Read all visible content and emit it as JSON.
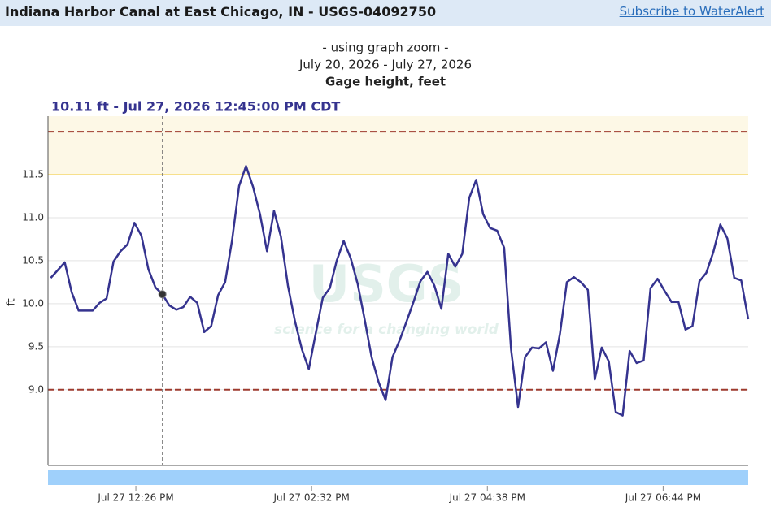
{
  "header": {
    "title": "Indiana Harbor Canal at East Chicago, IN - USGS-04092750",
    "link": "Subscribe to WaterAlert"
  },
  "chart_data": {
    "type": "line",
    "subtitle_lines": [
      "- using graph zoom -",
      "July 20, 2026 - July 27, 2026",
      "Gage height, feet"
    ],
    "ylabel": "ft",
    "watermark": [
      "USGS",
      "science for a changing world"
    ],
    "tooltip": {
      "label": "10.11 ft - Jul 27, 2026 12:45:00 PM CDT",
      "point": 16
    },
    "xlim": [
      "Jul 27 11:23 AM",
      "Jul 27 07:45 PM"
    ],
    "xticks": [
      "Jul 27 12:26 PM",
      "Jul 27 02:32 PM",
      "Jul 27 04:38 PM",
      "Jul 27 06:44 PM"
    ],
    "ylim": [
      8.12,
      12.18
    ],
    "yticks": [
      {
        "value": 9.0,
        "label": "9.0"
      },
      9.5,
      {
        "value": 10.0,
        "label": "10.0"
      },
      10.5,
      {
        "value": 11.0,
        "label": "11.0"
      },
      11.5
    ],
    "grid": true,
    "band": {
      "from": 11.5,
      "color": "#fdf8e6"
    },
    "reference_lines": [
      {
        "value": 12.0,
        "color": "#9e3a2e",
        "dashed": true
      },
      {
        "value": 11.5,
        "color": "#f7e08c",
        "dashed": false
      },
      {
        "value": 9.0,
        "color": "#9e3a2e",
        "dashed": true
      }
    ],
    "navigator_color": "#9fd0fb",
    "x": [
      "Jul 27 11:25 AM",
      "Jul 27 11:30 AM",
      "Jul 27 11:35 AM",
      "Jul 27 11:40 AM",
      "Jul 27 11:45 AM",
      "Jul 27 11:50 AM",
      "Jul 27 11:55 AM",
      "Jul 27 12:00 PM",
      "Jul 27 12:05 PM",
      "Jul 27 12:10 PM",
      "Jul 27 12:15 PM",
      "Jul 27 12:20 PM",
      "Jul 27 12:25 PM",
      "Jul 27 12:30 PM",
      "Jul 27 12:35 PM",
      "Jul 27 12:40 PM",
      "Jul 27 12:45 PM",
      "Jul 27 12:50 PM",
      "Jul 27 12:55 PM",
      "Jul 27 01:00 PM",
      "Jul 27 01:05 PM",
      "Jul 27 01:10 PM",
      "Jul 27 01:15 PM",
      "Jul 27 01:20 PM",
      "Jul 27 01:25 PM",
      "Jul 27 01:30 PM",
      "Jul 27 01:35 PM",
      "Jul 27 01:40 PM",
      "Jul 27 01:45 PM",
      "Jul 27 01:50 PM",
      "Jul 27 01:55 PM",
      "Jul 27 02:00 PM",
      "Jul 27 02:05 PM",
      "Jul 27 02:10 PM",
      "Jul 27 02:15 PM",
      "Jul 27 02:20 PM",
      "Jul 27 02:25 PM",
      "Jul 27 02:30 PM",
      "Jul 27 02:35 PM",
      "Jul 27 02:40 PM",
      "Jul 27 02:45 PM",
      "Jul 27 02:50 PM",
      "Jul 27 02:55 PM",
      "Jul 27 03:00 PM",
      "Jul 27 03:05 PM",
      "Jul 27 03:10 PM",
      "Jul 27 03:15 PM",
      "Jul 27 03:20 PM",
      "Jul 27 03:25 PM",
      "Jul 27 03:30 PM",
      "Jul 27 03:35 PM",
      "Jul 27 03:40 PM",
      "Jul 27 03:45 PM",
      "Jul 27 03:50 PM",
      "Jul 27 03:55 PM",
      "Jul 27 04:00 PM",
      "Jul 27 04:05 PM",
      "Jul 27 04:10 PM",
      "Jul 27 04:15 PM",
      "Jul 27 04:20 PM",
      "Jul 27 04:25 PM",
      "Jul 27 04:30 PM",
      "Jul 27 04:35 PM",
      "Jul 27 04:40 PM",
      "Jul 27 04:45 PM",
      "Jul 27 04:50 PM",
      "Jul 27 04:55 PM",
      "Jul 27 05:00 PM",
      "Jul 27 05:05 PM",
      "Jul 27 05:10 PM",
      "Jul 27 05:15 PM",
      "Jul 27 05:20 PM",
      "Jul 27 05:25 PM",
      "Jul 27 05:30 PM",
      "Jul 27 05:35 PM",
      "Jul 27 05:40 PM",
      "Jul 27 05:45 PM",
      "Jul 27 05:50 PM",
      "Jul 27 05:55 PM",
      "Jul 27 06:00 PM",
      "Jul 27 06:05 PM",
      "Jul 27 06:10 PM",
      "Jul 27 06:15 PM",
      "Jul 27 06:20 PM",
      "Jul 27 06:25 PM",
      "Jul 27 06:30 PM",
      "Jul 27 06:35 PM",
      "Jul 27 06:40 PM",
      "Jul 27 06:45 PM",
      "Jul 27 06:50 PM",
      "Jul 27 06:55 PM",
      "Jul 27 07:00 PM",
      "Jul 27 07:05 PM",
      "Jul 27 07:10 PM",
      "Jul 27 07:15 PM",
      "Jul 27 07:20 PM",
      "Jul 27 07:25 PM",
      "Jul 27 07:30 PM",
      "Jul 27 07:35 PM",
      "Jul 27 07:40 PM",
      "Jul 27 07:45 PM"
    ],
    "series": [
      {
        "name": "Gage height",
        "color": "#35338f",
        "values": [
          10.3,
          10.39,
          10.48,
          10.13,
          9.92,
          9.92,
          9.92,
          10.01,
          10.06,
          10.49,
          10.61,
          10.69,
          10.94,
          10.79,
          10.4,
          10.19,
          10.11,
          9.98,
          9.93,
          9.96,
          10.08,
          10.01,
          9.67,
          9.74,
          10.1,
          10.25,
          10.74,
          11.37,
          11.6,
          11.36,
          11.04,
          10.61,
          11.08,
          10.78,
          10.21,
          9.8,
          9.47,
          9.24,
          9.66,
          10.07,
          10.18,
          10.5,
          10.73,
          10.53,
          10.23,
          9.82,
          9.38,
          9.09,
          8.88,
          9.38,
          9.57,
          9.79,
          10.02,
          10.26,
          10.37,
          10.21,
          9.94,
          10.58,
          10.43,
          10.58,
          11.23,
          11.44,
          11.04,
          10.88,
          10.85,
          10.65,
          9.47,
          8.8,
          9.38,
          9.49,
          9.48,
          9.55,
          9.22,
          9.65,
          10.25,
          10.31,
          10.25,
          10.16,
          9.12,
          9.49,
          9.33,
          8.74,
          8.7,
          9.45,
          9.31,
          9.34,
          10.18,
          10.29,
          10.15,
          10.02,
          10.02,
          9.7,
          9.74,
          10.26,
          10.36,
          10.6,
          10.92,
          10.76,
          10.3,
          10.27,
          9.82
        ]
      }
    ]
  }
}
